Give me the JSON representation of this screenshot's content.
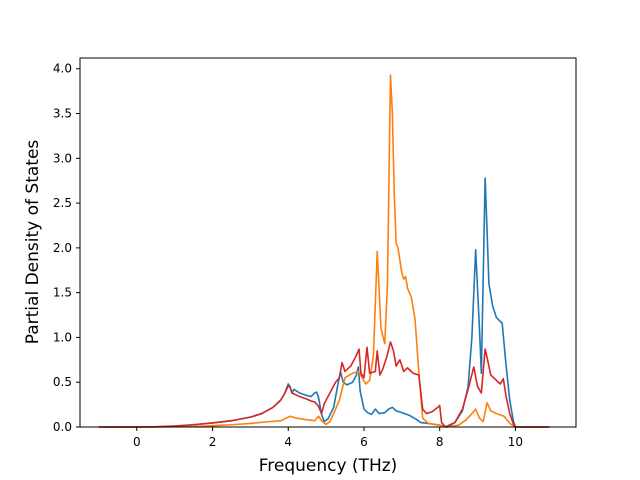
{
  "chart_data": {
    "type": "line",
    "title": "",
    "xlabel": "Frequency (THz)",
    "ylabel": "Partial Density of States",
    "xlim": [
      -1.5,
      11.6
    ],
    "ylim": [
      0,
      4.12
    ],
    "xticks": [
      0,
      2,
      4,
      6,
      8,
      10
    ],
    "xtick_labels": [
      "0",
      "2",
      "4",
      "6",
      "8",
      "10"
    ],
    "yticks": [
      0,
      0.5,
      1,
      1.5,
      2,
      2.5,
      3,
      3.5,
      4
    ],
    "ytick_labels": [
      "0.0",
      "0.5",
      "1.0",
      "1.5",
      "2.0",
      "2.5",
      "3.0",
      "3.5",
      "4.0"
    ],
    "grid": false,
    "legend": "none",
    "series": [
      {
        "color": "#1f77b4",
        "points": [
          [
            -1.0,
            0.0
          ],
          [
            0.0,
            0.0
          ],
          [
            0.5,
            0.002
          ],
          [
            1.0,
            0.01
          ],
          [
            1.5,
            0.025
          ],
          [
            2.0,
            0.045
          ],
          [
            2.5,
            0.07
          ],
          [
            3.0,
            0.11
          ],
          [
            3.3,
            0.15
          ],
          [
            3.6,
            0.22
          ],
          [
            3.8,
            0.3
          ],
          [
            3.9,
            0.37
          ],
          [
            4.0,
            0.48
          ],
          [
            4.05,
            0.45
          ],
          [
            4.1,
            0.38
          ],
          [
            4.15,
            0.42
          ],
          [
            4.3,
            0.38
          ],
          [
            4.5,
            0.35
          ],
          [
            4.6,
            0.34
          ],
          [
            4.7,
            0.38
          ],
          [
            4.75,
            0.39
          ],
          [
            4.8,
            0.33
          ],
          [
            4.88,
            0.14
          ],
          [
            4.95,
            0.06
          ],
          [
            5.05,
            0.09
          ],
          [
            5.2,
            0.22
          ],
          [
            5.3,
            0.45
          ],
          [
            5.38,
            0.62
          ],
          [
            5.45,
            0.5
          ],
          [
            5.55,
            0.47
          ],
          [
            5.7,
            0.5
          ],
          [
            5.8,
            0.58
          ],
          [
            5.85,
            0.67
          ],
          [
            5.9,
            0.4
          ],
          [
            6.0,
            0.2
          ],
          [
            6.1,
            0.16
          ],
          [
            6.2,
            0.14
          ],
          [
            6.3,
            0.2
          ],
          [
            6.4,
            0.15
          ],
          [
            6.55,
            0.16
          ],
          [
            6.65,
            0.2
          ],
          [
            6.75,
            0.22
          ],
          [
            6.85,
            0.18
          ],
          [
            7.0,
            0.16
          ],
          [
            7.2,
            0.13
          ],
          [
            7.4,
            0.08
          ],
          [
            7.5,
            0.05
          ],
          [
            7.7,
            0.04
          ],
          [
            8.0,
            0.02
          ],
          [
            8.2,
            0.0
          ],
          [
            8.4,
            0.05
          ],
          [
            8.6,
            0.18
          ],
          [
            8.75,
            0.45
          ],
          [
            8.85,
            1.0
          ],
          [
            8.95,
            1.98
          ],
          [
            9.05,
            1.1
          ],
          [
            9.1,
            0.6
          ],
          [
            9.2,
            2.78
          ],
          [
            9.25,
            2.2
          ],
          [
            9.3,
            1.6
          ],
          [
            9.4,
            1.35
          ],
          [
            9.5,
            1.22
          ],
          [
            9.6,
            1.18
          ],
          [
            9.65,
            1.16
          ],
          [
            9.75,
            0.7
          ],
          [
            9.85,
            0.3
          ],
          [
            9.95,
            0.06
          ],
          [
            10.0,
            0.0
          ],
          [
            10.9,
            0.0
          ]
        ]
      },
      {
        "color": "#ff7f0e",
        "points": [
          [
            -1.0,
            0.0
          ],
          [
            0.5,
            0.0
          ],
          [
            1.5,
            0.005
          ],
          [
            2.0,
            0.015
          ],
          [
            2.5,
            0.025
          ],
          [
            3.0,
            0.04
          ],
          [
            3.5,
            0.06
          ],
          [
            3.8,
            0.07
          ],
          [
            3.95,
            0.1
          ],
          [
            4.05,
            0.12
          ],
          [
            4.2,
            0.1
          ],
          [
            4.5,
            0.08
          ],
          [
            4.7,
            0.07
          ],
          [
            4.8,
            0.12
          ],
          [
            4.9,
            0.06
          ],
          [
            5.0,
            0.03
          ],
          [
            5.1,
            0.06
          ],
          [
            5.2,
            0.15
          ],
          [
            5.35,
            0.3
          ],
          [
            5.5,
            0.55
          ],
          [
            5.7,
            0.6
          ],
          [
            5.85,
            0.62
          ],
          [
            5.95,
            0.55
          ],
          [
            6.05,
            0.48
          ],
          [
            6.15,
            0.52
          ],
          [
            6.25,
            0.8
          ],
          [
            6.35,
            1.96
          ],
          [
            6.45,
            1.1
          ],
          [
            6.55,
            0.93
          ],
          [
            6.62,
            1.6
          ],
          [
            6.7,
            3.93
          ],
          [
            6.75,
            3.5
          ],
          [
            6.8,
            2.6
          ],
          [
            6.85,
            2.05
          ],
          [
            6.9,
            2.0
          ],
          [
            7.0,
            1.72
          ],
          [
            7.05,
            1.65
          ],
          [
            7.1,
            1.68
          ],
          [
            7.15,
            1.55
          ],
          [
            7.25,
            1.45
          ],
          [
            7.35,
            1.2
          ],
          [
            7.45,
            0.6
          ],
          [
            7.55,
            0.1
          ],
          [
            7.7,
            0.04
          ],
          [
            8.0,
            0.02
          ],
          [
            8.2,
            0.0
          ],
          [
            8.5,
            0.02
          ],
          [
            8.7,
            0.08
          ],
          [
            8.85,
            0.15
          ],
          [
            8.95,
            0.2
          ],
          [
            9.05,
            0.1
          ],
          [
            9.15,
            0.06
          ],
          [
            9.25,
            0.27
          ],
          [
            9.35,
            0.18
          ],
          [
            9.5,
            0.15
          ],
          [
            9.7,
            0.12
          ],
          [
            9.85,
            0.04
          ],
          [
            10.0,
            0.0
          ],
          [
            10.9,
            0.0
          ]
        ]
      },
      {
        "color": "#d62728",
        "points": [
          [
            -1.0,
            0.0
          ],
          [
            0.0,
            0.0
          ],
          [
            0.5,
            0.002
          ],
          [
            1.0,
            0.01
          ],
          [
            1.5,
            0.025
          ],
          [
            2.0,
            0.045
          ],
          [
            2.5,
            0.07
          ],
          [
            3.0,
            0.11
          ],
          [
            3.3,
            0.15
          ],
          [
            3.6,
            0.22
          ],
          [
            3.8,
            0.3
          ],
          [
            3.9,
            0.37
          ],
          [
            4.0,
            0.46
          ],
          [
            4.05,
            0.44
          ],
          [
            4.1,
            0.38
          ],
          [
            4.3,
            0.34
          ],
          [
            4.5,
            0.31
          ],
          [
            4.6,
            0.29
          ],
          [
            4.7,
            0.28
          ],
          [
            4.8,
            0.23
          ],
          [
            4.88,
            0.15
          ],
          [
            4.95,
            0.26
          ],
          [
            5.1,
            0.38
          ],
          [
            5.25,
            0.5
          ],
          [
            5.35,
            0.55
          ],
          [
            5.42,
            0.72
          ],
          [
            5.5,
            0.62
          ],
          [
            5.65,
            0.68
          ],
          [
            5.8,
            0.8
          ],
          [
            5.87,
            0.87
          ],
          [
            5.92,
            0.6
          ],
          [
            6.0,
            0.55
          ],
          [
            6.08,
            0.89
          ],
          [
            6.15,
            0.6
          ],
          [
            6.3,
            0.62
          ],
          [
            6.35,
            0.85
          ],
          [
            6.42,
            0.58
          ],
          [
            6.5,
            0.65
          ],
          [
            6.6,
            0.78
          ],
          [
            6.7,
            0.95
          ],
          [
            6.78,
            0.85
          ],
          [
            6.85,
            0.68
          ],
          [
            6.95,
            0.75
          ],
          [
            7.05,
            0.62
          ],
          [
            7.15,
            0.66
          ],
          [
            7.3,
            0.6
          ],
          [
            7.45,
            0.58
          ],
          [
            7.55,
            0.2
          ],
          [
            7.65,
            0.15
          ],
          [
            7.8,
            0.17
          ],
          [
            7.95,
            0.22
          ],
          [
            8.0,
            0.24
          ],
          [
            8.05,
            0.05
          ],
          [
            8.15,
            0.0
          ],
          [
            8.4,
            0.05
          ],
          [
            8.6,
            0.2
          ],
          [
            8.75,
            0.42
          ],
          [
            8.9,
            0.67
          ],
          [
            9.0,
            0.45
          ],
          [
            9.1,
            0.38
          ],
          [
            9.2,
            0.87
          ],
          [
            9.25,
            0.78
          ],
          [
            9.35,
            0.58
          ],
          [
            9.5,
            0.52
          ],
          [
            9.6,
            0.48
          ],
          [
            9.68,
            0.54
          ],
          [
            9.75,
            0.35
          ],
          [
            9.85,
            0.15
          ],
          [
            9.95,
            0.03
          ],
          [
            10.0,
            0.0
          ],
          [
            10.9,
            0.0
          ]
        ]
      }
    ]
  }
}
